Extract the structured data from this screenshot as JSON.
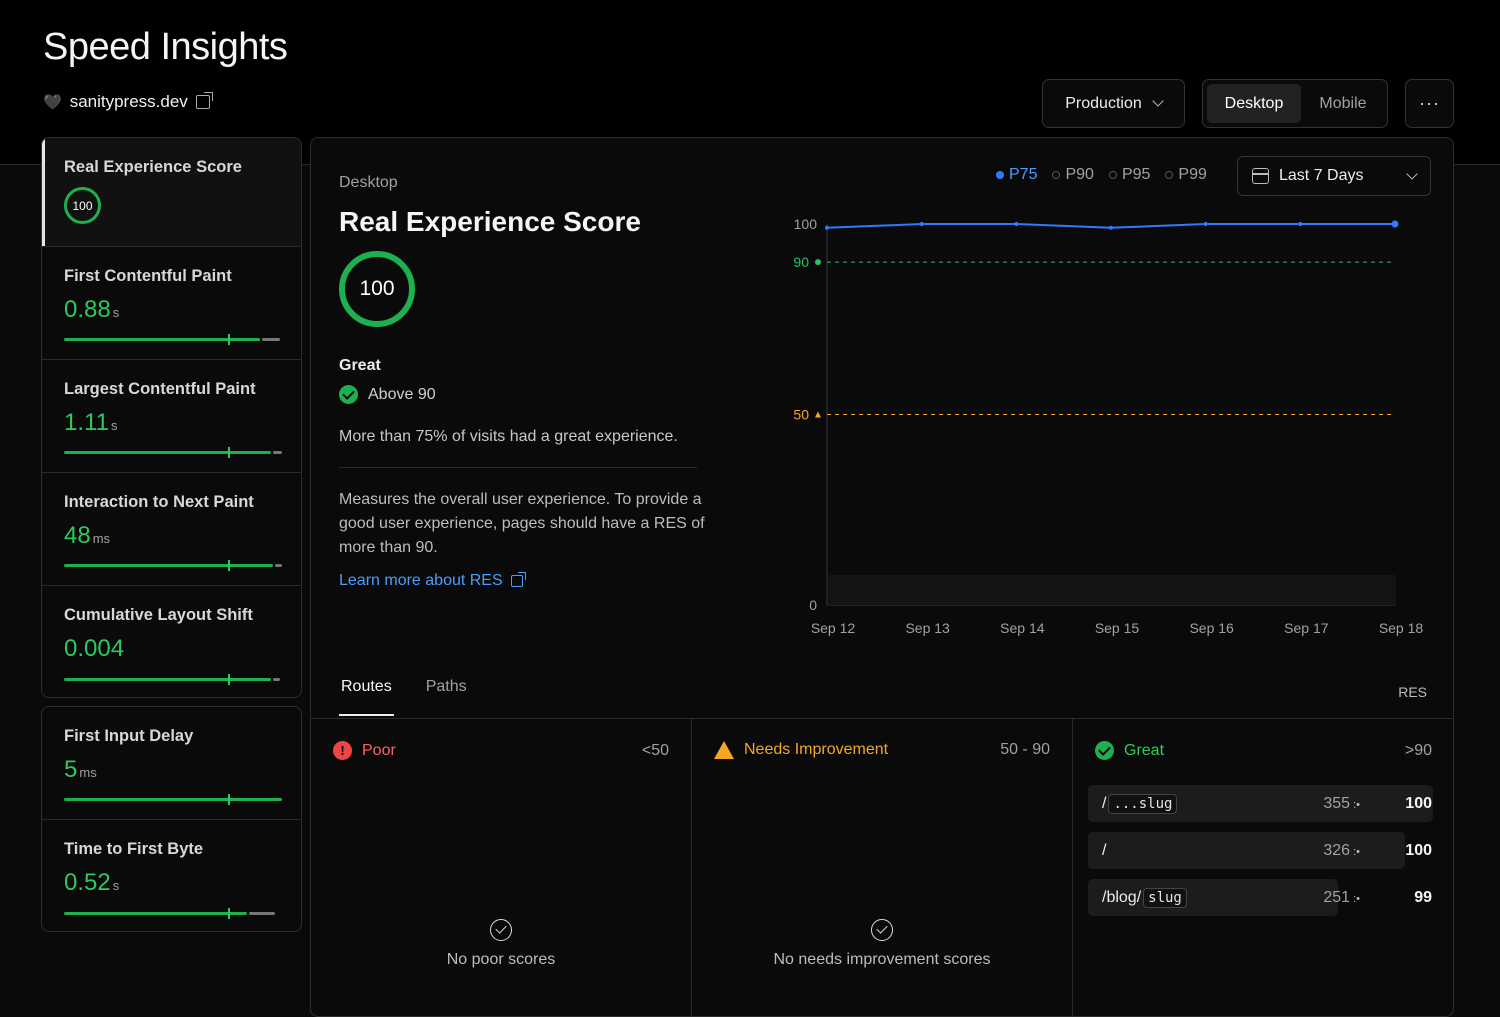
{
  "header": {
    "title": "Speed Insights",
    "project": "sanitypress.dev",
    "environment": "Production",
    "device_tabs": [
      "Desktop",
      "Mobile"
    ],
    "more": "···"
  },
  "metrics": [
    {
      "label": "Real Experience Score",
      "score": "100",
      "active": true
    },
    {
      "label": "First Contentful Paint",
      "value": "0.88",
      "unit": "s",
      "green": 0.9,
      "rest": 0.08
    },
    {
      "label": "Largest Contentful Paint",
      "value": "1.11",
      "unit": "s",
      "green": 0.95,
      "rest": 0.04
    },
    {
      "label": "Interaction to Next Paint",
      "value": "48",
      "unit": "ms",
      "green": 0.96,
      "rest": 0.03
    },
    {
      "label": "Cumulative Layout Shift",
      "value": "0.004",
      "unit": "",
      "green": 0.95,
      "rest": 0.03
    }
  ],
  "metrics_other": [
    {
      "label": "First Input Delay",
      "value": "5",
      "unit": "ms",
      "green": 1.0,
      "rest": 0
    },
    {
      "label": "Time to First Byte",
      "value": "0.52",
      "unit": "s",
      "green": 0.84,
      "rest": 0.12
    }
  ],
  "detail": {
    "device": "Desktop",
    "title": "Real Experience Score",
    "score": "100",
    "rating": "Great",
    "threshold_text": "Above 90",
    "summary": "More than 75% of visits had a great experience.",
    "description": "Measures the overall user experience. To provide a good user experience, pages should have a RES of more than 90.",
    "learn_more": "Learn more about RES"
  },
  "percentiles": [
    "P75",
    "P90",
    "P95",
    "P99"
  ],
  "selected_percentile": "P75",
  "date_range": "Last 7 Days",
  "chart_data": {
    "type": "line",
    "x": [
      "Sep 12",
      "Sep 13",
      "Sep 14",
      "Sep 15",
      "Sep 16",
      "Sep 17",
      "Sep 18"
    ],
    "series": [
      {
        "values": [
          99,
          100,
          100,
          99,
          100,
          100,
          100
        ]
      }
    ],
    "ylim": [
      0,
      100
    ],
    "yticks": [
      "0",
      "50",
      "90",
      "100"
    ],
    "thresholds": [
      {
        "value": 90,
        "label": "90",
        "color": "#22c55e"
      },
      {
        "value": 50,
        "label": "50",
        "color": "#f5a623"
      }
    ],
    "line_color": "#2f7bff"
  },
  "routes": {
    "tabs": [
      "Routes",
      "Paths"
    ],
    "column_label": "RES",
    "poor": {
      "title": "Poor",
      "range": "<50",
      "empty": "No poor scores"
    },
    "needs": {
      "title": "Needs Improvement",
      "range": "50 - 90",
      "empty": "No needs improvement scores"
    },
    "great": {
      "title": "Great",
      "range": ">90",
      "rows": [
        {
          "prefix": "/",
          "code": "...slug",
          "count": "355",
          "score": "100",
          "share": 0.98
        },
        {
          "prefix": "/",
          "code": "",
          "count": "326",
          "score": "100",
          "share": 0.9
        },
        {
          "prefix": "/blog/",
          "code": "slug",
          "count": "251",
          "score": "99",
          "share": 0.71
        }
      ]
    }
  }
}
